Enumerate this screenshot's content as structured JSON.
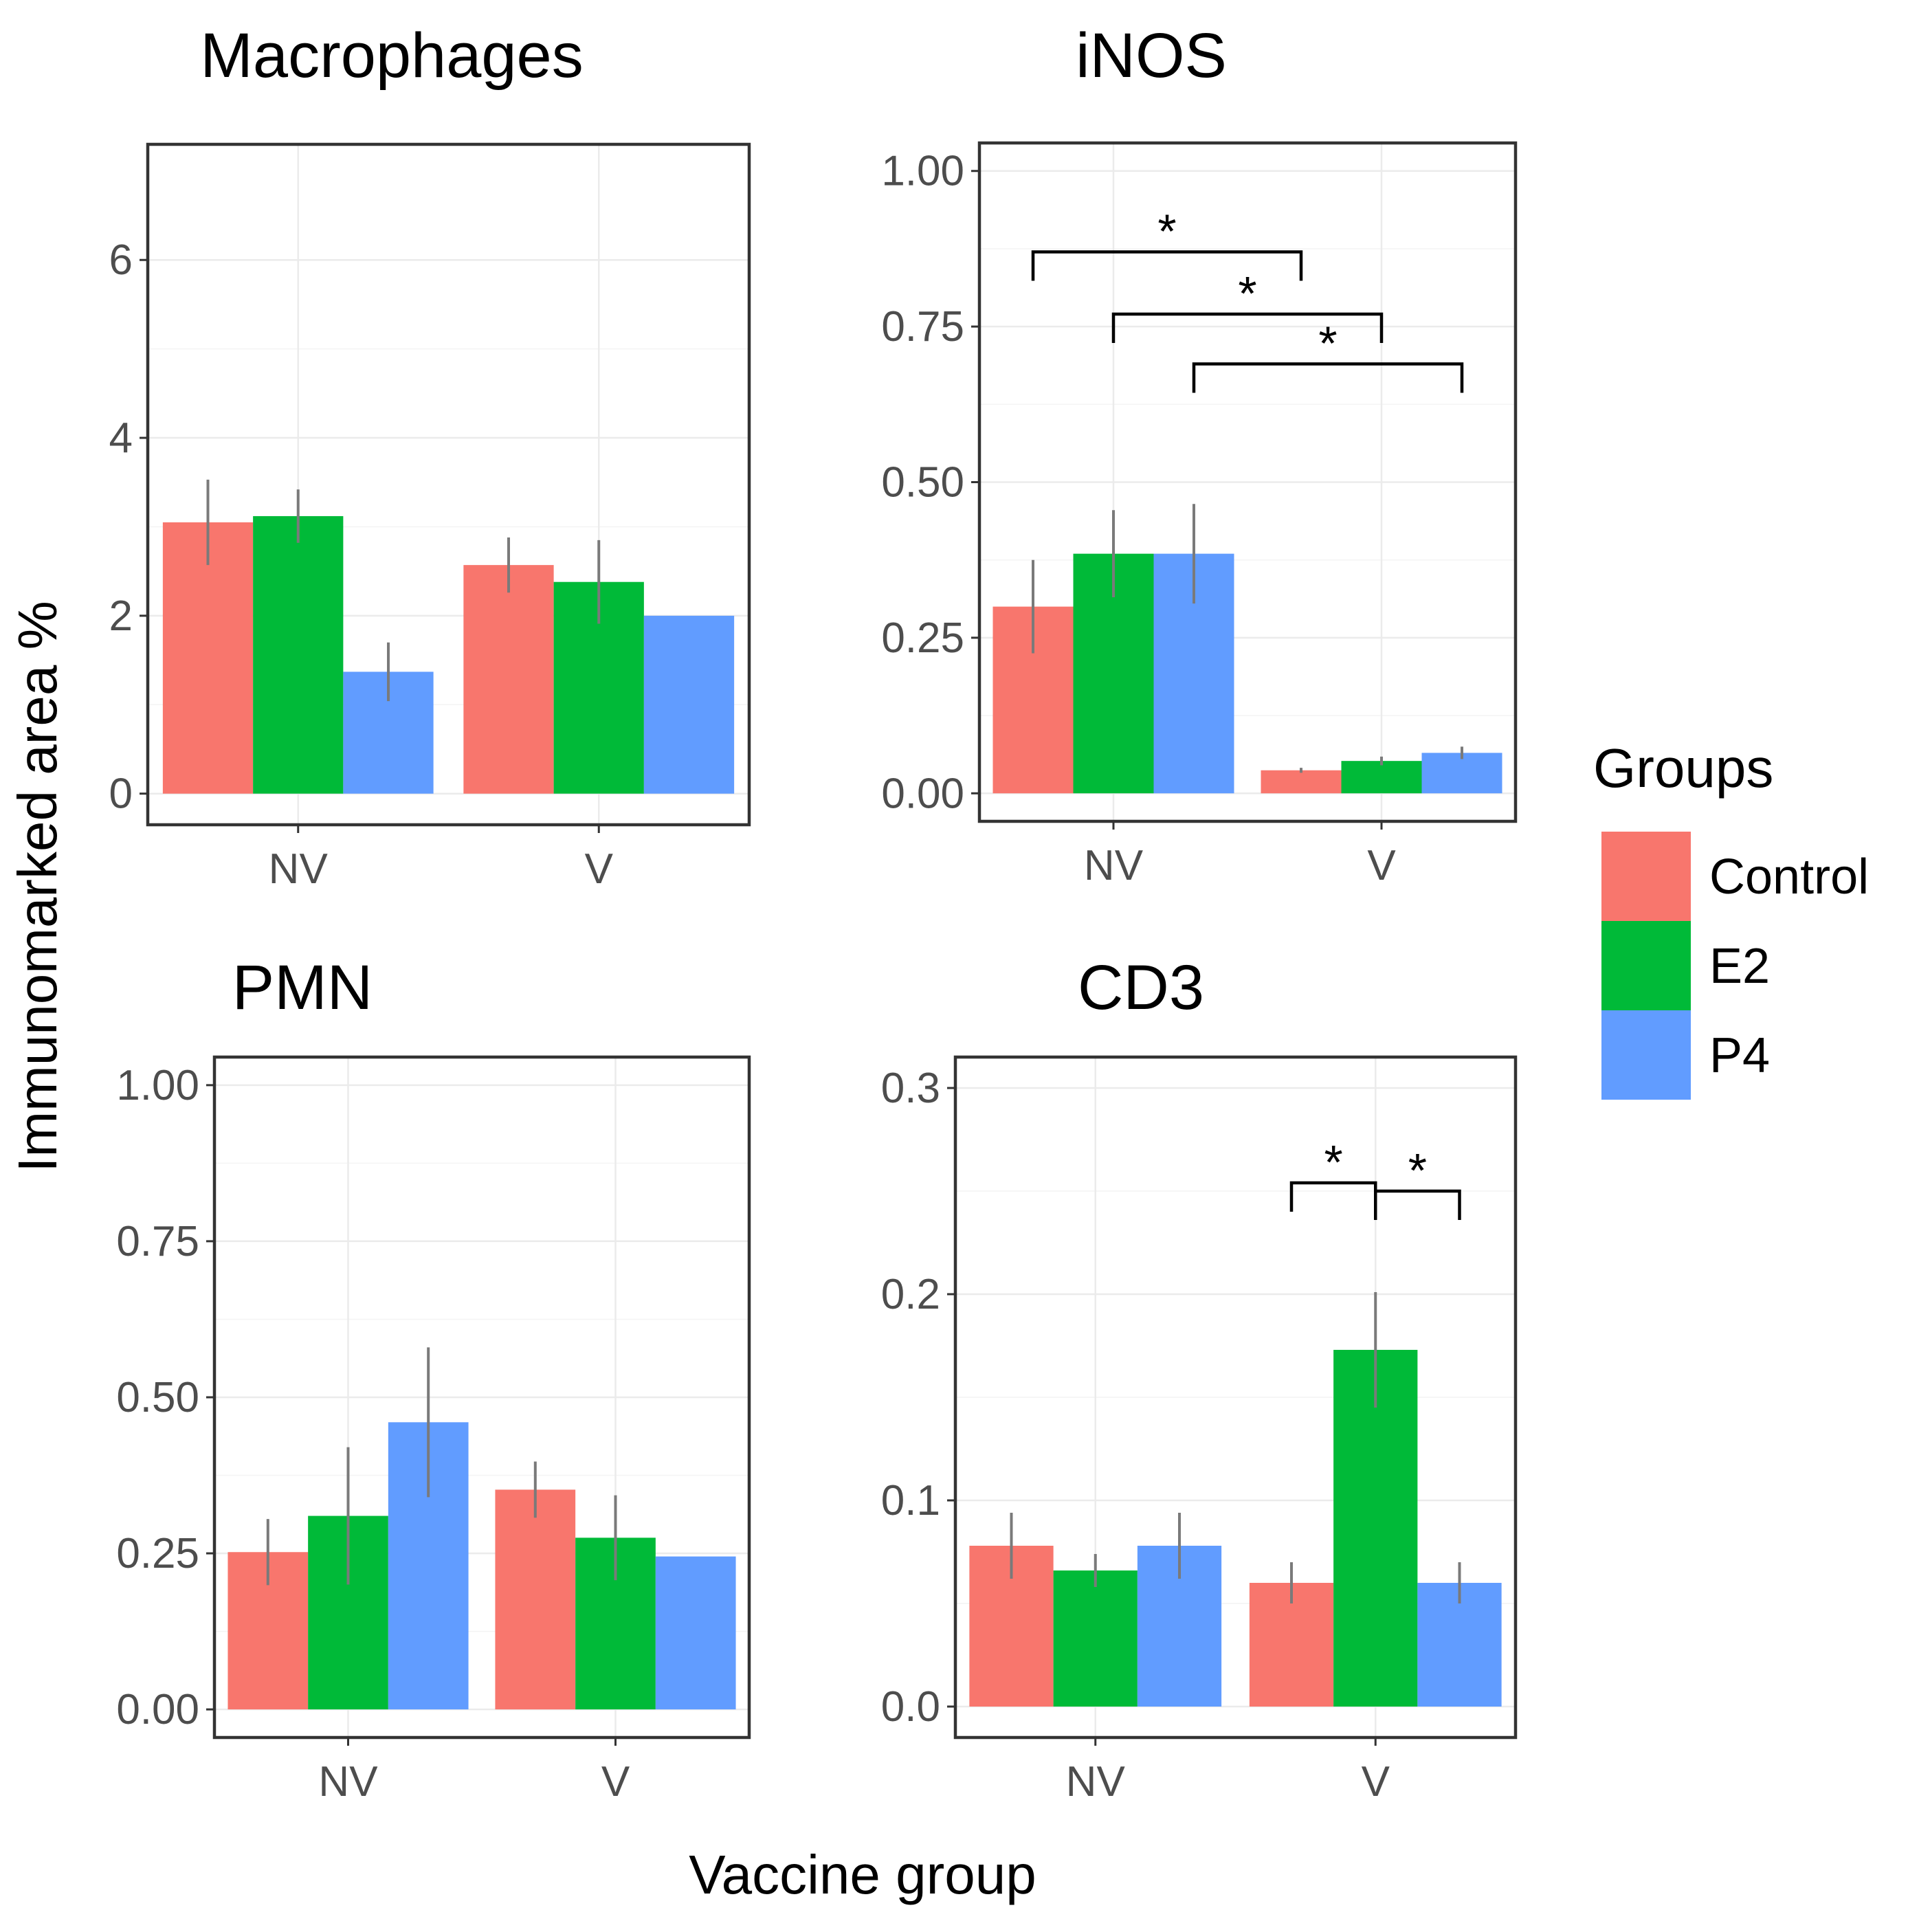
{
  "figure": {
    "ylabel": "Immunomarked area %",
    "xlabel": "Vaccine group",
    "legend": {
      "title": "Groups",
      "items": [
        {
          "label": "Control",
          "color": "#F8766D"
        },
        {
          "label": "E2",
          "color": "#00BA38"
        },
        {
          "label": "P4",
          "color": "#619CFF"
        }
      ]
    }
  },
  "chart_data": [
    {
      "type": "bar",
      "title": "Macrophages",
      "categories": [
        "NV",
        "V"
      ],
      "ylim": [
        -0.35,
        7.3
      ],
      "yticks": [
        0,
        2,
        4,
        6
      ],
      "tick_labels": [
        "0",
        "2",
        "4",
        "6"
      ],
      "series": [
        {
          "name": "Control",
          "values": [
            3.05,
            2.57
          ],
          "errors": [
            0.48,
            0.31
          ]
        },
        {
          "name": "E2",
          "values": [
            3.12,
            2.38
          ],
          "errors": [
            0.3,
            0.47
          ]
        },
        {
          "name": "P4",
          "values": [
            1.37,
            2.0
          ],
          "errors": [
            0.33,
            0.0
          ]
        }
      ],
      "significance": []
    },
    {
      "type": "bar",
      "title": "iNOS",
      "categories": [
        "NV",
        "V"
      ],
      "ylim": [
        -0.045,
        1.045
      ],
      "yticks": [
        0,
        0.25,
        0.5,
        0.75,
        1.0
      ],
      "tick_labels": [
        "0.00",
        "0.25",
        "0.50",
        "0.75",
        "1.00"
      ],
      "series": [
        {
          "name": "Control",
          "values": [
            0.3,
            0.037
          ],
          "errors": [
            0.075,
            0.004
          ]
        },
        {
          "name": "E2",
          "values": [
            0.385,
            0.052
          ],
          "errors": [
            0.07,
            0.007
          ]
        },
        {
          "name": "P4",
          "values": [
            0.385,
            0.065
          ],
          "errors": [
            0.08,
            0.01
          ]
        }
      ],
      "significance": [
        {
          "from": [
            "NV",
            "Control"
          ],
          "to": [
            "V",
            "Control"
          ],
          "height": 0.87,
          "label": "*"
        },
        {
          "from": [
            "NV",
            "E2"
          ],
          "to": [
            "V",
            "E2"
          ],
          "height": 0.77,
          "label": "*"
        },
        {
          "from": [
            "NV",
            "P4"
          ],
          "to": [
            "V",
            "P4"
          ],
          "height": 0.69,
          "label": "*"
        }
      ]
    },
    {
      "type": "bar",
      "title": "PMN",
      "categories": [
        "NV",
        "V"
      ],
      "ylim": [
        -0.045,
        1.045
      ],
      "yticks": [
        0,
        0.25,
        0.5,
        0.75,
        1.0
      ],
      "tick_labels": [
        "0.00",
        "0.25",
        "0.50",
        "0.75",
        "1.00"
      ],
      "series": [
        {
          "name": "Control",
          "values": [
            0.252,
            0.352
          ],
          "errors": [
            0.053,
            0.045
          ]
        },
        {
          "name": "E2",
          "values": [
            0.31,
            0.275
          ],
          "errors": [
            0.11,
            0.068
          ]
        },
        {
          "name": "P4",
          "values": [
            0.46,
            0.245
          ],
          "errors": [
            0.12,
            0.0
          ]
        }
      ],
      "significance": []
    },
    {
      "type": "bar",
      "title": "CD3",
      "categories": [
        "NV",
        "V"
      ],
      "ylim": [
        -0.015,
        0.315
      ],
      "yticks": [
        0,
        0.1,
        0.2,
        0.3
      ],
      "tick_labels": [
        "0.0",
        "0.1",
        "0.2",
        "0.3"
      ],
      "series": [
        {
          "name": "Control",
          "values": [
            0.078,
            0.06
          ],
          "errors": [
            0.016,
            0.01
          ]
        },
        {
          "name": "E2",
          "values": [
            0.066,
            0.173
          ],
          "errors": [
            0.008,
            0.028
          ]
        },
        {
          "name": "P4",
          "values": [
            0.078,
            0.06
          ],
          "errors": [
            0.016,
            0.01
          ]
        }
      ],
      "significance": [
        {
          "from": [
            "V",
            "Control"
          ],
          "to": [
            "V",
            "E2"
          ],
          "height": 0.254,
          "label": "*"
        },
        {
          "from": [
            "V",
            "E2"
          ],
          "to": [
            "V",
            "P4"
          ],
          "height": 0.25,
          "label": "*"
        }
      ]
    }
  ]
}
